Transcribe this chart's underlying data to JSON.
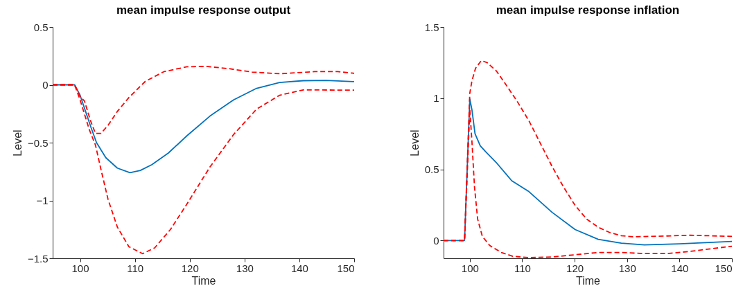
{
  "chart_data": [
    {
      "type": "line",
      "title": "mean impulse response output",
      "xlabel": "Time",
      "ylabel": "Level",
      "xlim": [
        95,
        150
      ],
      "xticks": [
        100,
        110,
        120,
        130,
        140,
        150
      ],
      "ylim": [
        -1.5,
        0.5
      ],
      "yticks": [
        -1.5,
        -1,
        -0.5,
        0,
        0.5
      ],
      "grid": false,
      "series": [
        {
          "color": "#0072bd",
          "line_style": "solid",
          "x": [
            95,
            99,
            100,
            101,
            102,
            103,
            104.7,
            106.8,
            109.1,
            111,
            113.1,
            116.1,
            119.5,
            123.7,
            128,
            132.2,
            136.4,
            140.7,
            144.9,
            150
          ],
          "values": [
            0,
            0,
            -0.09,
            -0.23,
            -0.37,
            -0.5,
            -0.63,
            -0.72,
            -0.76,
            -0.74,
            -0.69,
            -0.59,
            -0.44,
            -0.27,
            -0.13,
            -0.03,
            0.02,
            0.036,
            0.038,
            0.028
          ]
        },
        {
          "color": "#ff0000",
          "line_style": "dashed",
          "x": [
            95,
            99,
            100,
            100.8,
            101.9,
            102.8,
            103.8,
            105.1,
            106.8,
            108.9,
            111.9,
            115.3,
            119.5,
            122.9,
            127.1,
            131.4,
            136.4,
            142.8,
            147,
            150
          ],
          "values": [
            0,
            0,
            -0.1,
            -0.14,
            -0.31,
            -0.42,
            -0.42,
            -0.35,
            -0.23,
            -0.11,
            0.03,
            0.114,
            0.156,
            0.16,
            0.14,
            0.11,
            0.096,
            0.114,
            0.114,
            0.1
          ]
        },
        {
          "color": "#ff0000",
          "line_style": "dashed",
          "x": [
            95,
            99,
            100,
            101.7,
            102.8,
            103.8,
            105.1,
            106.8,
            108.9,
            111.4,
            113.6,
            116.5,
            119.5,
            123.7,
            128,
            132.2,
            136.4,
            140.7,
            150
          ],
          "values": [
            0,
            0,
            -0.13,
            -0.39,
            -0.52,
            -0.73,
            -0.99,
            -1.23,
            -1.4,
            -1.46,
            -1.41,
            -1.25,
            -1.03,
            -0.71,
            -0.43,
            -0.21,
            -0.09,
            -0.044,
            -0.046
          ]
        }
      ]
    },
    {
      "type": "line",
      "title": "mean impulse response inflation",
      "xlabel": "Time",
      "ylabel": "Level",
      "xlim": [
        95,
        150
      ],
      "xticks": [
        100,
        110,
        120,
        130,
        140,
        150
      ],
      "ylim": [
        -0.125,
        1.5
      ],
      "yticks": [
        0,
        0.5,
        1,
        1.5
      ],
      "grid": false,
      "series": [
        {
          "color": "#0072bd",
          "line_style": "solid",
          "x": [
            95,
            99,
            100,
            100.4,
            101,
            102,
            103,
            105,
            108,
            111.3,
            115.7,
            120.1,
            124.5,
            128.9,
            133.3,
            140,
            145,
            150
          ],
          "values": [
            0,
            0,
            0.995,
            0.92,
            0.75,
            0.665,
            0.625,
            0.55,
            0.42,
            0.343,
            0.198,
            0.077,
            0.008,
            -0.019,
            -0.031,
            -0.023,
            -0.015,
            -0.006
          ]
        },
        {
          "color": "#ff0000",
          "line_style": "dashed",
          "x": [
            95,
            99,
            100,
            100.4,
            101.1,
            102.2,
            103.3,
            105.1,
            106.8,
            109,
            111.3,
            113.5,
            115.7,
            117.9,
            120.1,
            122.3,
            124.5,
            126.7,
            128.9,
            131.1,
            137.7,
            142.1,
            150
          ],
          "values": [
            0,
            0,
            1.035,
            1.12,
            1.21,
            1.264,
            1.25,
            1.19,
            1.1,
            0.98,
            0.84,
            0.68,
            0.52,
            0.375,
            0.246,
            0.15,
            0.093,
            0.056,
            0.034,
            0.026,
            0.032,
            0.037,
            0.029
          ]
        },
        {
          "color": "#ff0000",
          "line_style": "dashed",
          "x": [
            95,
            99,
            100,
            100.4,
            100.9,
            101.5,
            102.4,
            103.8,
            106,
            108.2,
            111.3,
            115.7,
            120.1,
            124.5,
            128.9,
            133.3,
            137.7,
            142.1,
            150
          ],
          "values": [
            0,
            0,
            0.92,
            0.7,
            0.375,
            0.15,
            0.029,
            -0.035,
            -0.084,
            -0.111,
            -0.12,
            -0.116,
            -0.1,
            -0.084,
            -0.084,
            -0.092,
            -0.092,
            -0.076,
            -0.04
          ]
        }
      ]
    }
  ]
}
